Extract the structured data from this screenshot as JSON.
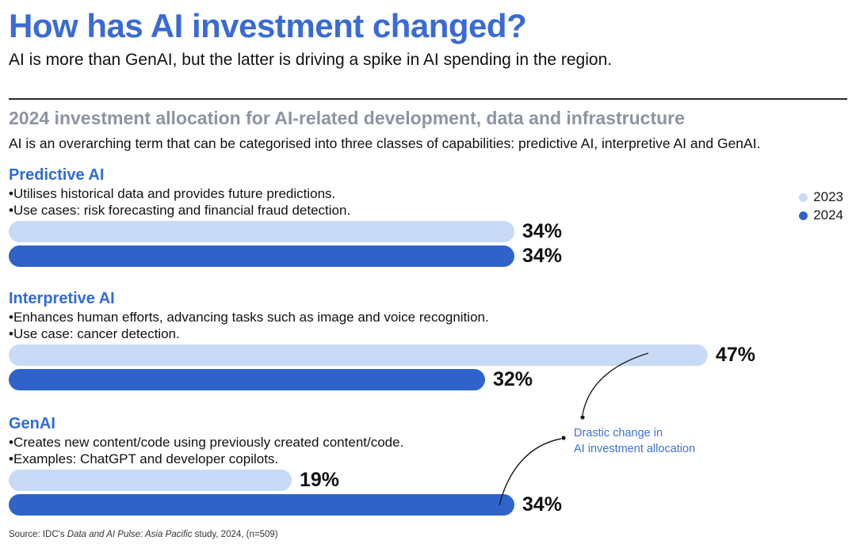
{
  "header": {
    "title": "How has AI investment changed?",
    "subtitle": "AI is more than GenAI, but the latter is driving a spike in AI spending in the region."
  },
  "overview": {
    "heading": "2024 investment allocation for AI-related development, data and infrastructure",
    "description": "AI is an overarching term that can be categorised into three classes of capabilities: predictive AI, interpretive AI and GenAI."
  },
  "legend": {
    "items": [
      {
        "label": "2023",
        "color": "#c8daf6"
      },
      {
        "label": "2024",
        "color": "#2f63c9"
      }
    ]
  },
  "annotation": {
    "line1": "Drastic change in",
    "line2": "AI investment allocation"
  },
  "source": {
    "prefix": "Source: IDC's ",
    "italic": "Data and AI Pulse: Asia Pacific",
    "suffix": " study, 2024, (n=509)"
  },
  "chart_data": {
    "type": "bar",
    "orientation": "horizontal",
    "unit": "percent",
    "xlim": [
      0,
      50
    ],
    "categories": [
      "Predictive AI",
      "Interpretive AI",
      "GenAI"
    ],
    "series": [
      {
        "name": "2023",
        "color": "#c8daf6",
        "values": [
          34,
          47,
          19
        ]
      },
      {
        "name": "2024",
        "color": "#2f63c9",
        "values": [
          34,
          32,
          34
        ]
      }
    ],
    "sections": [
      {
        "heading": "Predictive AI",
        "bullets": [
          "Utilises historical data and provides future predictions.",
          "Use cases: risk forecasting and financial fraud detection."
        ],
        "bars": [
          {
            "year": "2023",
            "value": 34,
            "label": "34%"
          },
          {
            "year": "2024",
            "value": 34,
            "label": "34%"
          }
        ]
      },
      {
        "heading": "Interpretive AI",
        "bullets": [
          "Enhances human efforts, advancing tasks such as image and voice recognition.",
          "Use case: cancer detection."
        ],
        "bars": [
          {
            "year": "2023",
            "value": 47,
            "label": "47%"
          },
          {
            "year": "2024",
            "value": 32,
            "label": "32%"
          }
        ]
      },
      {
        "heading": "GenAI",
        "bullets": [
          "Creates new content/code using previously created content/code.",
          "Examples: ChatGPT and developer copilots."
        ],
        "bars": [
          {
            "year": "2023",
            "value": 19,
            "label": "19%"
          },
          {
            "year": "2024",
            "value": 34,
            "label": "34%"
          }
        ]
      }
    ]
  }
}
